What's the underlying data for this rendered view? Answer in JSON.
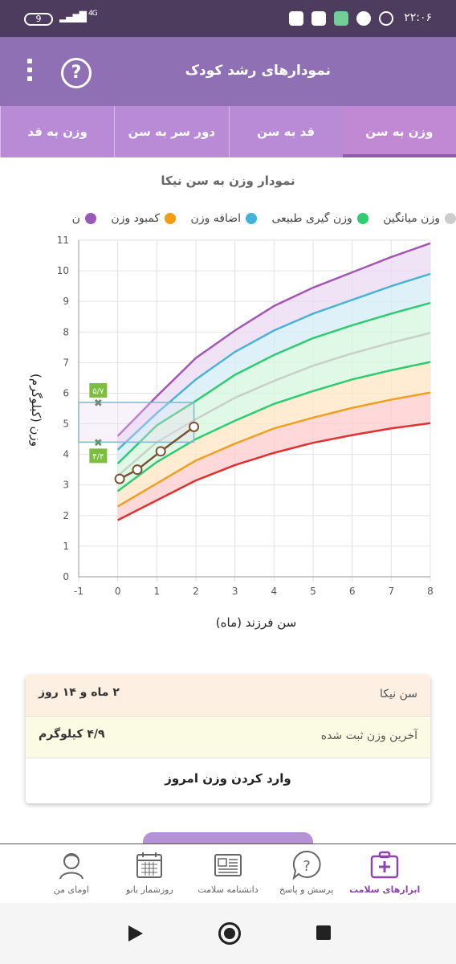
{
  "status_bar": {
    "time": "۲۲:۰۶",
    "battery": "9",
    "network": "4G"
  },
  "app_bar": {
    "title": "نمودارهای رشد کودک",
    "help_glyph": "?"
  },
  "tabs": [
    {
      "label": "وزن به سن",
      "active": true
    },
    {
      "label": "قد به سن",
      "active": false
    },
    {
      "label": "دور سر به سن",
      "active": false
    },
    {
      "label": "وزن به قد",
      "active": false
    }
  ],
  "chart_title": "نمودار وزن به سن نیکا",
  "legend": [
    {
      "label": "وزن میانگین",
      "color": "#cccccc"
    },
    {
      "label": "وزن گیری طبیعی",
      "color": "#2ecc71"
    },
    {
      "label": "اضافه وزن",
      "color": "#3fb4d6"
    },
    {
      "label": "کمبود وزن",
      "color": "#f39c12"
    },
    {
      "label": "ن",
      "color": "#9b59b6"
    }
  ],
  "chart_data": {
    "type": "line",
    "xlabel": "سن فرزند (ماه)",
    "ylabel": "وزن (کیلوگرم)",
    "xlim": [
      -1,
      8
    ],
    "ylim": [
      0,
      11
    ],
    "x_ticks": [
      "-1",
      "0",
      "1",
      "2",
      "3",
      "4",
      "5",
      "6",
      "7",
      "8"
    ],
    "y_ticks": [
      "0",
      "1",
      "2",
      "3",
      "4",
      "5",
      "6",
      "7",
      "8",
      "9",
      "10",
      "11"
    ],
    "x": [
      0,
      1,
      2,
      3,
      4,
      5,
      6,
      7,
      8
    ],
    "series": [
      {
        "key": "severe_low",
        "color": "#e03131",
        "values": [
          1.85,
          2.5,
          3.15,
          3.65,
          4.05,
          4.38,
          4.63,
          4.85,
          5.02
        ]
      },
      {
        "key": "low",
        "color": "#f0a020",
        "values": [
          2.3,
          3.05,
          3.8,
          4.35,
          4.85,
          5.2,
          5.52,
          5.79,
          6.02
        ]
      },
      {
        "key": "normal_low",
        "color": "#2ecc71",
        "values": [
          2.8,
          3.75,
          4.5,
          5.1,
          5.65,
          6.07,
          6.45,
          6.75,
          7.02
        ]
      },
      {
        "key": "average",
        "color": "#c8d0c8",
        "values": [
          3.3,
          4.4,
          5.15,
          5.85,
          6.4,
          6.9,
          7.3,
          7.65,
          7.97
        ]
      },
      {
        "key": "normal_high",
        "color": "#2ecc71",
        "values": [
          3.7,
          4.95,
          5.75,
          6.6,
          7.25,
          7.8,
          8.22,
          8.6,
          8.95
        ]
      },
      {
        "key": "high",
        "color": "#4ab3d4",
        "values": [
          4.15,
          5.35,
          6.45,
          7.35,
          8.05,
          8.6,
          9.05,
          9.5,
          9.9
        ]
      },
      {
        "key": "very_high",
        "color": "#a356b5",
        "values": [
          4.6,
          5.9,
          7.15,
          8.05,
          8.85,
          9.45,
          9.95,
          10.45,
          10.9
        ]
      }
    ],
    "child_weights": {
      "x": [
        0.05,
        0.5,
        1.1,
        1.95
      ],
      "y": [
        3.2,
        3.5,
        4.1,
        4.9
      ]
    },
    "range_box": {
      "x": [
        -1,
        1.95
      ],
      "y": [
        4.4,
        5.7
      ]
    },
    "range_labels": [
      {
        "value": 5.7,
        "label": "۵/۷"
      },
      {
        "value": 4.4,
        "label": "۴/۴"
      }
    ]
  },
  "info": {
    "age_label": "سن نیکا",
    "age_value": "۲ ماه و ۱۴ روز",
    "weight_label": "آخرین وزن ثبت شده",
    "weight_value": "۴/۹ کیلوگرم",
    "action_label": "وارد کردن وزن امروز"
  },
  "bottom_nav": [
    {
      "label": "ابزارهای سلامت",
      "icon": "health-kit-icon",
      "active": true
    },
    {
      "label": "پرسش و پاسخ",
      "icon": "question-bubble-icon",
      "active": false
    },
    {
      "label": "دانشنامه سلامت",
      "icon": "newspaper-icon",
      "active": false
    },
    {
      "label": "روزشمار بانو",
      "icon": "calendar-icon",
      "active": false
    },
    {
      "label": "اومای من",
      "icon": "profile-icon",
      "active": false
    }
  ]
}
